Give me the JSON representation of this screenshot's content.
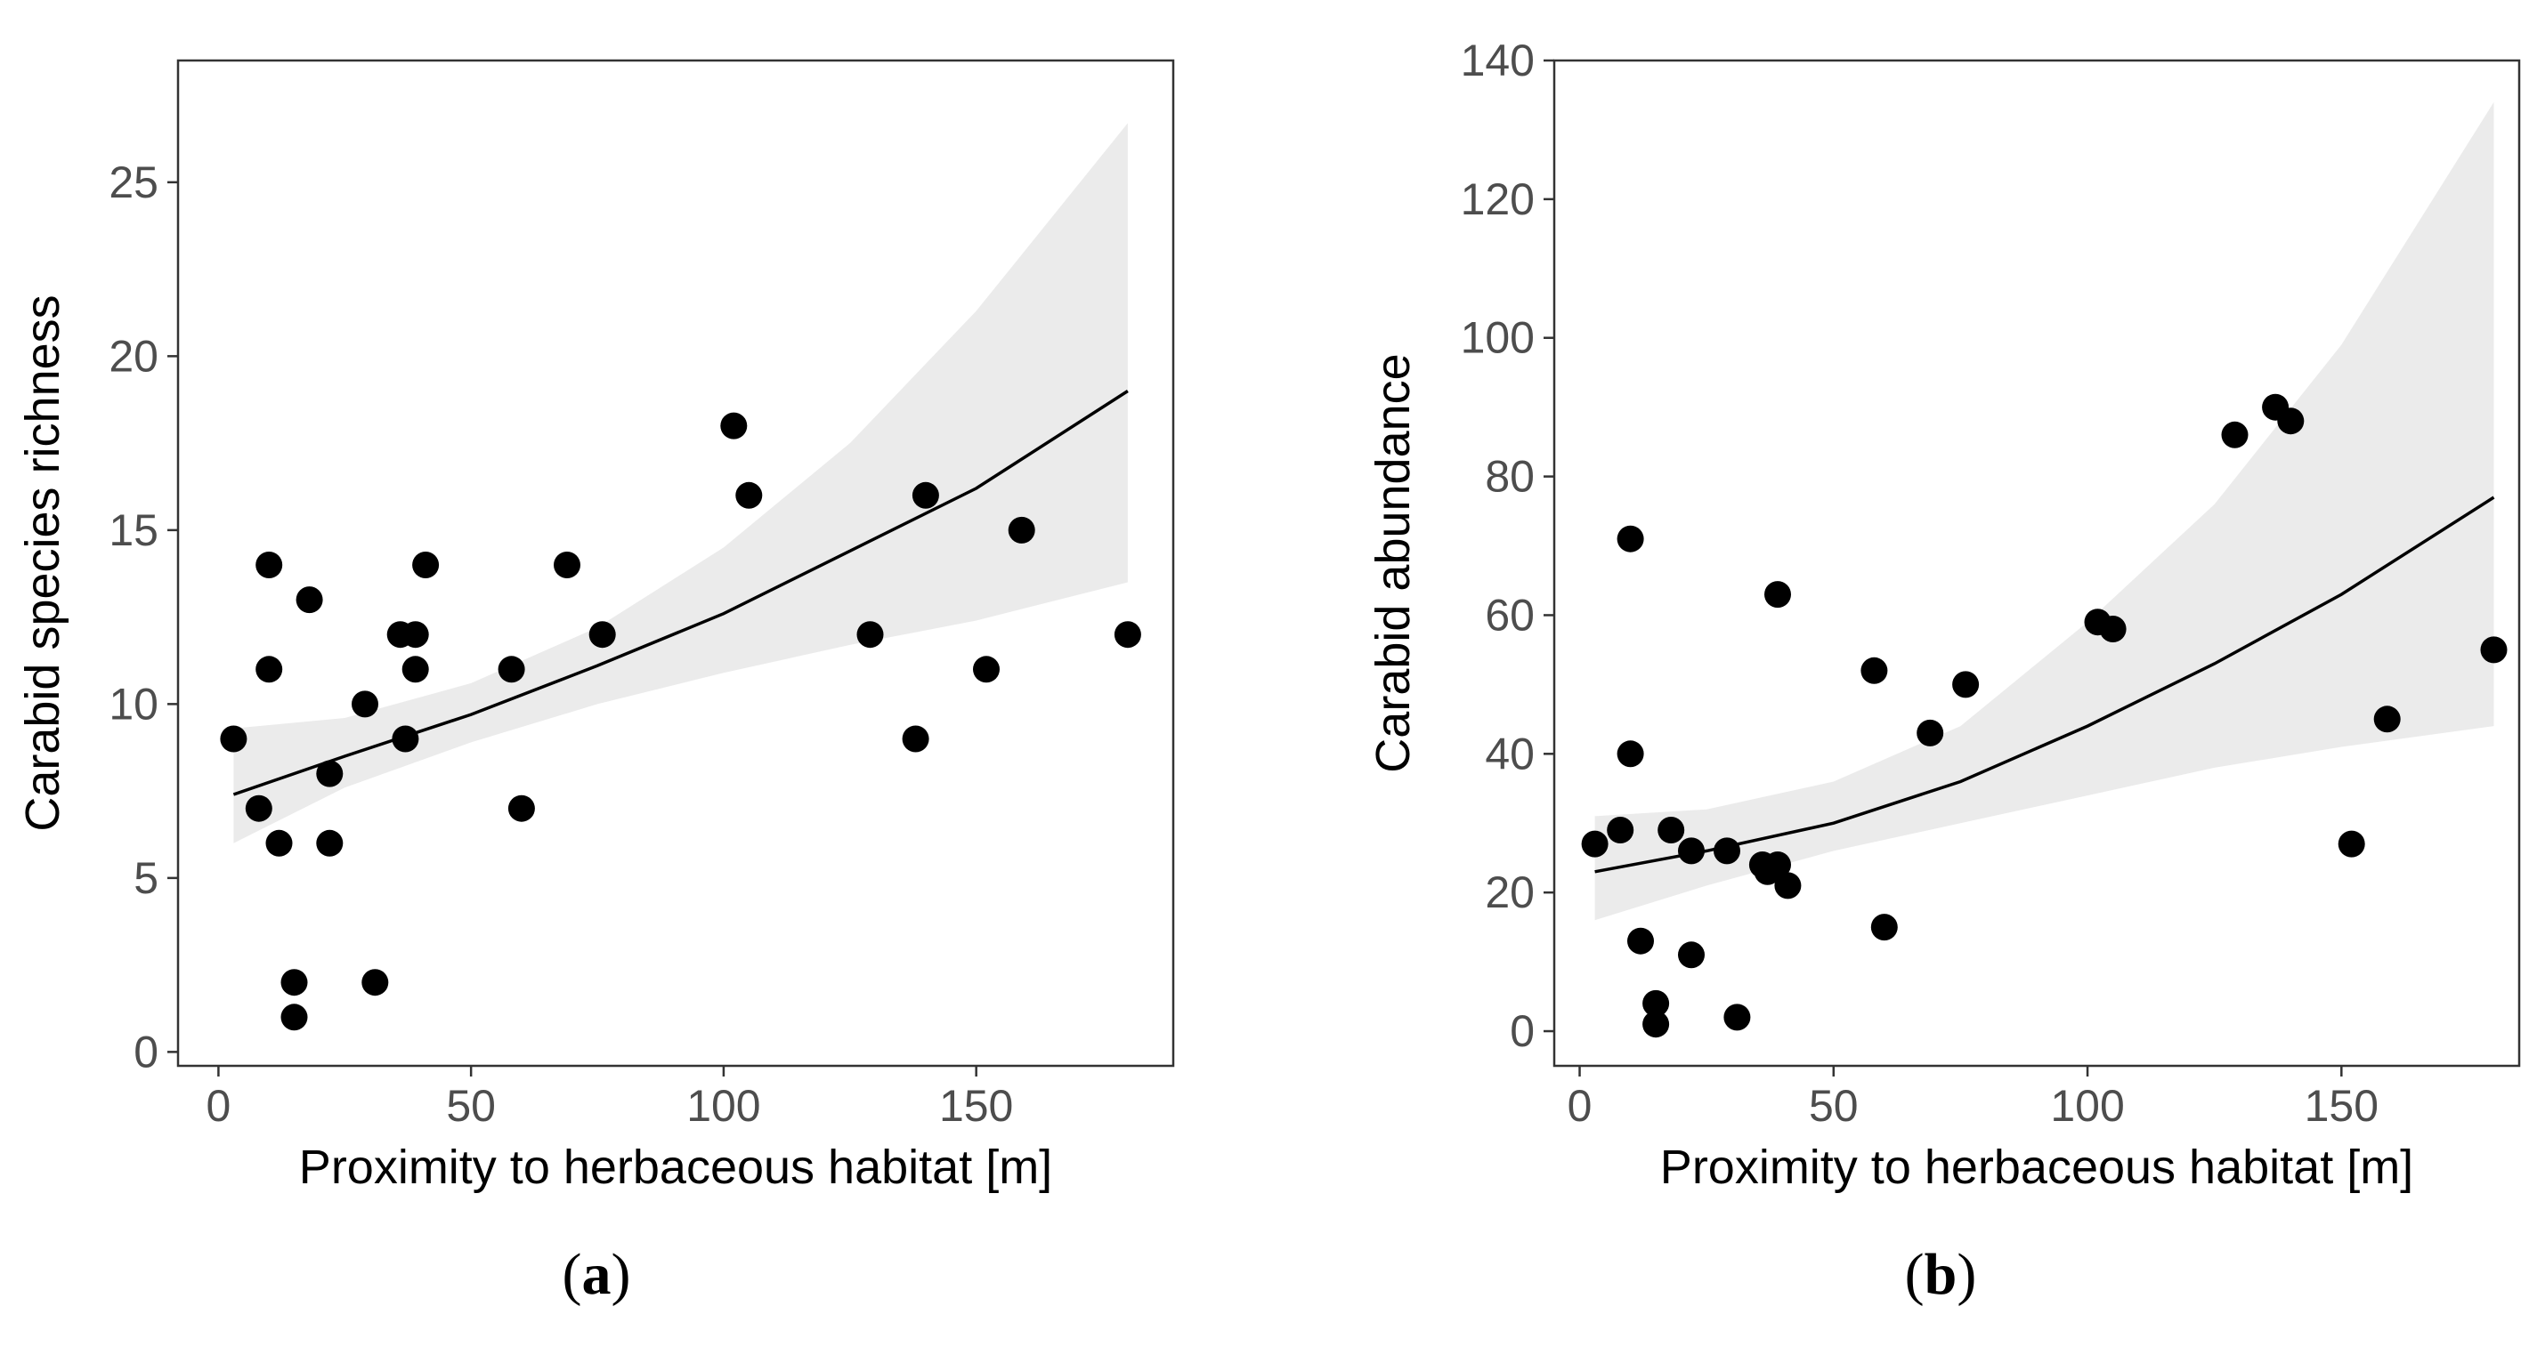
{
  "chart_data": [
    {
      "type": "scatter",
      "panel_label": "a",
      "xlabel": "Proximity to herbaceous habitat [m]",
      "ylabel": "Carabid species richness",
      "xlim": [
        -8,
        189
      ],
      "ylim": [
        -0.4,
        28.5
      ],
      "x_ticks": [
        0,
        50,
        100,
        150
      ],
      "y_ticks": [
        0,
        5,
        10,
        15,
        20,
        25
      ],
      "grid": false,
      "points": [
        {
          "x": 3,
          "y": 9
        },
        {
          "x": 8,
          "y": 7
        },
        {
          "x": 10,
          "y": 14
        },
        {
          "x": 10,
          "y": 11
        },
        {
          "x": 12,
          "y": 6
        },
        {
          "x": 15,
          "y": 2
        },
        {
          "x": 15,
          "y": 1
        },
        {
          "x": 18,
          "y": 13
        },
        {
          "x": 22,
          "y": 8
        },
        {
          "x": 22,
          "y": 6
        },
        {
          "x": 29,
          "y": 10
        },
        {
          "x": 31,
          "y": 2
        },
        {
          "x": 36,
          "y": 12
        },
        {
          "x": 37,
          "y": 9
        },
        {
          "x": 39,
          "y": 12
        },
        {
          "x": 39,
          "y": 11
        },
        {
          "x": 41,
          "y": 14
        },
        {
          "x": 58,
          "y": 11
        },
        {
          "x": 60,
          "y": 7
        },
        {
          "x": 69,
          "y": 14
        },
        {
          "x": 76,
          "y": 12
        },
        {
          "x": 102,
          "y": 18
        },
        {
          "x": 105,
          "y": 16
        },
        {
          "x": 129,
          "y": 12
        },
        {
          "x": 138,
          "y": 9
        },
        {
          "x": 140,
          "y": 16
        },
        {
          "x": 152,
          "y": 11
        },
        {
          "x": 159,
          "y": 15
        },
        {
          "x": 180,
          "y": 12
        }
      ],
      "fit": {
        "x": [
          3,
          25,
          50,
          75,
          100,
          125,
          150,
          180
        ],
        "y": [
          7.4,
          8.5,
          9.7,
          11.1,
          12.6,
          14.4,
          16.2,
          19.0
        ],
        "lower": [
          6.0,
          7.6,
          8.9,
          10.0,
          10.9,
          11.7,
          12.4,
          13.5
        ],
        "upper": [
          9.3,
          9.6,
          10.6,
          12.2,
          14.5,
          17.5,
          21.3,
          26.7
        ]
      }
    },
    {
      "type": "scatter",
      "panel_label": "b",
      "xlabel": "Proximity to herbaceous habitat [m]",
      "ylabel": "Carabid abundance",
      "xlim": [
        -5,
        185
      ],
      "ylim": [
        -5,
        140
      ],
      "x_ticks": [
        0,
        50,
        100,
        150
      ],
      "y_ticks": [
        0,
        20,
        40,
        60,
        80,
        100,
        120,
        140
      ],
      "grid": false,
      "points": [
        {
          "x": 3,
          "y": 27
        },
        {
          "x": 8,
          "y": 29
        },
        {
          "x": 10,
          "y": 71
        },
        {
          "x": 10,
          "y": 40
        },
        {
          "x": 12,
          "y": 13
        },
        {
          "x": 15,
          "y": 4
        },
        {
          "x": 15,
          "y": 1
        },
        {
          "x": 18,
          "y": 29
        },
        {
          "x": 22,
          "y": 26
        },
        {
          "x": 22,
          "y": 11
        },
        {
          "x": 29,
          "y": 26
        },
        {
          "x": 31,
          "y": 2
        },
        {
          "x": 36,
          "y": 24
        },
        {
          "x": 37,
          "y": 23
        },
        {
          "x": 39,
          "y": 63
        },
        {
          "x": 39,
          "y": 24
        },
        {
          "x": 41,
          "y": 21
        },
        {
          "x": 58,
          "y": 52
        },
        {
          "x": 60,
          "y": 15
        },
        {
          "x": 69,
          "y": 43
        },
        {
          "x": 76,
          "y": 50
        },
        {
          "x": 102,
          "y": 59
        },
        {
          "x": 105,
          "y": 58
        },
        {
          "x": 129,
          "y": 86
        },
        {
          "x": 137,
          "y": 90
        },
        {
          "x": 140,
          "y": 88
        },
        {
          "x": 152,
          "y": 27
        },
        {
          "x": 159,
          "y": 45
        },
        {
          "x": 180,
          "y": 55
        }
      ],
      "fit": {
        "x": [
          3,
          25,
          50,
          75,
          100,
          125,
          150,
          180
        ],
        "y": [
          23,
          26,
          30,
          36,
          44,
          53,
          63,
          77
        ],
        "lower": [
          16,
          21,
          26,
          30,
          34,
          38,
          41,
          44
        ],
        "upper": [
          31,
          32,
          36,
          44,
          59,
          76,
          99,
          134
        ]
      }
    }
  ]
}
